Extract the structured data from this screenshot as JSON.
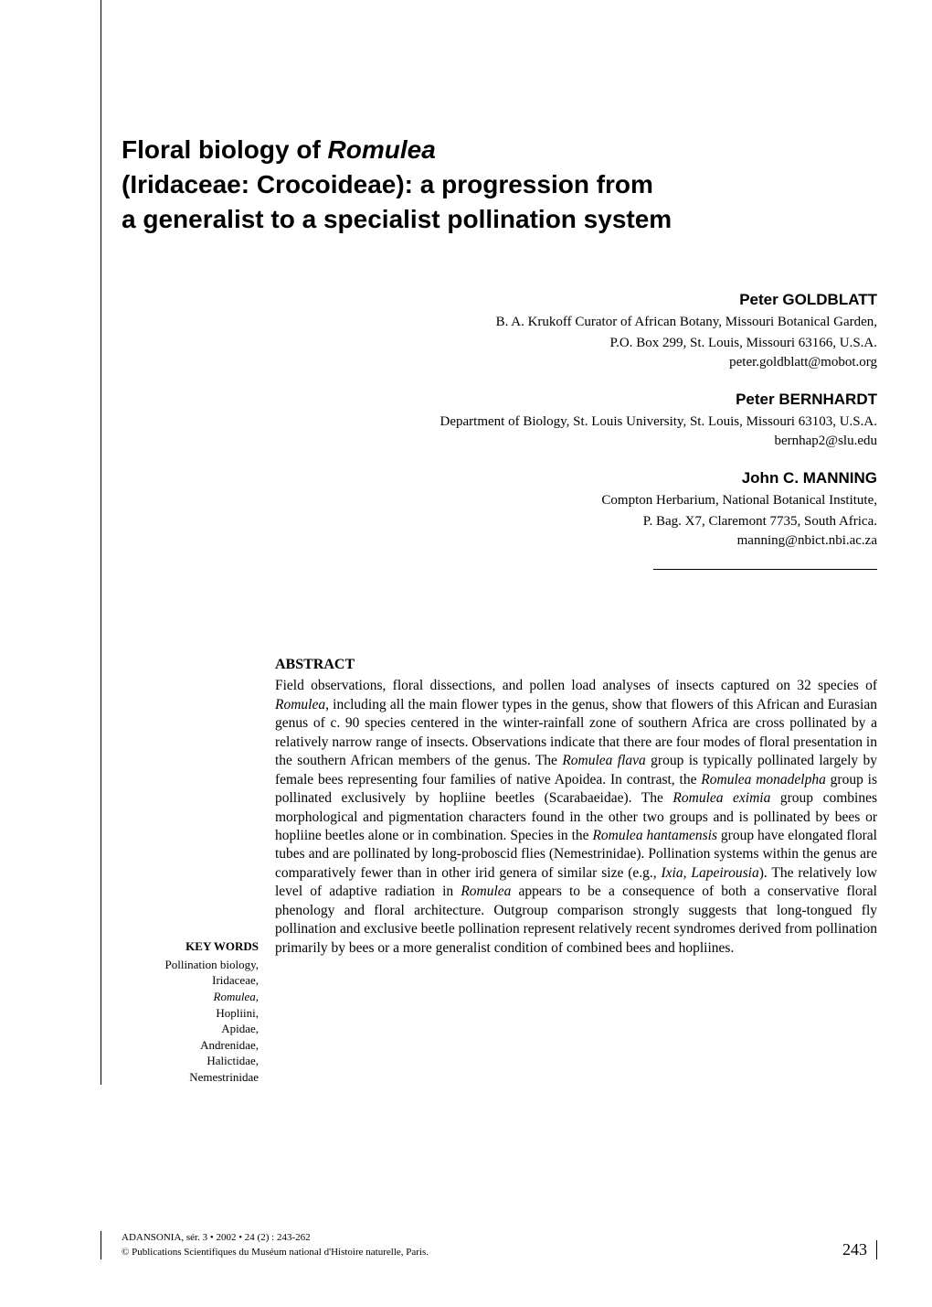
{
  "title": {
    "line1_prefix": "Floral biology of ",
    "line1_italic": "Romulea",
    "line2": "(Iridaceae: Crocoideae): a progression from",
    "line3": "a generalist to a specialist pollination system"
  },
  "authors": [
    {
      "name": "Peter GOLDBLATT",
      "affiliation_lines": [
        "B. A. Krukoff Curator of African Botany, Missouri Botanical Garden,",
        "P.O. Box 299, St. Louis, Missouri 63166, U.S.A."
      ],
      "email": "peter.goldblatt@mobot.org"
    },
    {
      "name": "Peter BERNHARDT",
      "affiliation_lines": [
        "Department of Biology, St. Louis University, St. Louis, Missouri 63103, U.S.A."
      ],
      "email": "bernhap2@slu.edu"
    },
    {
      "name": "John C. MANNING",
      "affiliation_lines": [
        "Compton Herbarium, National Botanical Institute,",
        "P. Bag. X7, Claremont 7735, South Africa."
      ],
      "email": "manning@nbict.nbi.ac.za"
    }
  ],
  "keywords": {
    "heading": "KEY WORDS",
    "items": [
      {
        "text": "Pollination biology,",
        "italic": false
      },
      {
        "text": "Iridaceae,",
        "italic": false
      },
      {
        "text": "Romulea,",
        "italic": true
      },
      {
        "text": "Hopliini,",
        "italic": false
      },
      {
        "text": "Apidae,",
        "italic": false
      },
      {
        "text": "Andrenidae,",
        "italic": false
      },
      {
        "text": "Halictidae,",
        "italic": false
      },
      {
        "text": "Nemestrinidae",
        "italic": false
      }
    ]
  },
  "abstract": {
    "heading": "ABSTRACT",
    "text_html": "Field observations, floral dissections, and pollen load analyses of insects captured on 32 species of <em>Romulea</em>, including all the main flower types in the genus, show that flowers of this African and Eurasian genus of c. 90 species centered in the winter-rainfall zone of southern Africa are cross pollinated by a relatively narrow range of insects. Observations indicate that there are four modes of floral presentation in the southern African members of the genus. The <em>Romulea flava</em> group is typically pollinated largely by female bees representing four families of native Apoidea. In contrast, the <em>Romulea monadelpha</em> group is pollinated exclusively by hopliine beetles (Scarabaeidae). The <em>Romulea eximia</em> group combines morphological and pigmentation characters found in the other two groups and is pollinated by bees or hopliine beetles alone or in combination. Species in the <em>Romulea hantamensis</em> group have elongated floral tubes and are pollinated by long-proboscid flies (Nemestrinidae). Pollination systems within the genus are comparatively fewer than in other irid genera of similar size (e.g., <em>Ixia, Lapeirousia</em>). The relatively low level of adaptive radiation in <em>Romulea</em> appears to be a consequence of both a conservative floral phenology and floral architecture. Outgroup comparison strongly suggests that long-tongued fly pollination and exclusive beetle pollination represent relatively recent syndromes derived from pollination primarily by bees or a more generalist condition of combined bees and hopliines."
  },
  "footer": {
    "line1": "ADANSONIA, sér. 3 • 2002 • 24 (2) : 243-262",
    "line2": "© Publications Scientifiques du Muséum national d'Histoire naturelle, Paris.",
    "page_number": "243"
  },
  "colors": {
    "text": "#000000",
    "background": "#ffffff",
    "border": "#000000"
  },
  "typography": {
    "title_fontsize": 28,
    "title_fontfamily": "Arial, Helvetica, sans-serif",
    "title_fontweight": "bold",
    "author_name_fontsize": 17,
    "author_affiliation_fontsize": 15,
    "abstract_fontsize": 15.5,
    "keywords_fontsize": 13,
    "footer_fontsize": 11,
    "page_number_fontsize": 18
  }
}
